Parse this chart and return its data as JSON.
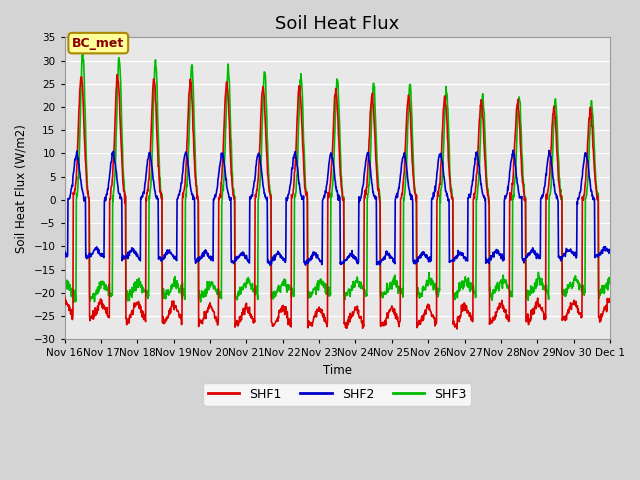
{
  "title": "Soil Heat Flux",
  "ylabel": "Soil Heat Flux (W/m2)",
  "xlabel": "Time",
  "ylim": [
    -30,
    35
  ],
  "yticks": [
    -30,
    -25,
    -20,
    -15,
    -10,
    -5,
    0,
    5,
    10,
    15,
    20,
    25,
    30,
    35
  ],
  "colors": {
    "SHF1": "#dd0000",
    "SHF2": "#0000cc",
    "SHF3": "#00bb00"
  },
  "fig_facecolor": "#d4d4d4",
  "axes_facecolor": "#e8e8e8",
  "annotation_text": "BC_met",
  "annotation_facecolor": "#ffff99",
  "annotation_edgecolor": "#aa8800",
  "annotation_textcolor": "#880000",
  "grid_color": "#ffffff",
  "title_fontsize": 13,
  "linewidth": 1.2,
  "dt_hours": 0.25,
  "total_hours": 360
}
